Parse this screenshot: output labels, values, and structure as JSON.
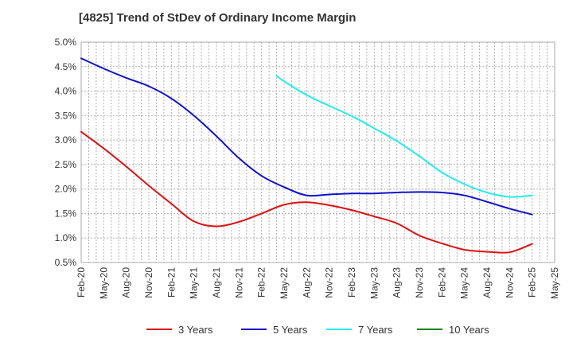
{
  "chart_data": {
    "type": "line",
    "title": "[4825]  Trend of StDev of Ordinary Income Margin",
    "xlabel": "",
    "ylabel": "",
    "x_ticks": [
      "Feb-20",
      "May-20",
      "Aug-20",
      "Nov-20",
      "Feb-21",
      "May-21",
      "Aug-21",
      "Nov-21",
      "Feb-22",
      "May-22",
      "Aug-22",
      "Nov-22",
      "Feb-23",
      "May-23",
      "Aug-23",
      "Nov-23",
      "Feb-24",
      "May-24",
      "Aug-24",
      "Nov-24",
      "Feb-25",
      "May-25"
    ],
    "y_ticks": [
      "0.5%",
      "1.0%",
      "1.5%",
      "2.0%",
      "2.5%",
      "3.0%",
      "3.5%",
      "4.0%",
      "4.5%",
      "5.0%"
    ],
    "ylim": [
      0.5,
      5.0
    ],
    "grid": true,
    "legend_position": "bottom",
    "series": [
      {
        "name": "3 Years",
        "color": "#dd1111",
        "points": [
          [
            "Feb-20",
            3.17
          ],
          [
            "May-20",
            2.83
          ],
          [
            "Aug-20",
            2.46
          ],
          [
            "Nov-20",
            2.07
          ],
          [
            "Feb-21",
            1.7
          ],
          [
            "May-21",
            1.34
          ],
          [
            "Aug-21",
            1.24
          ],
          [
            "Nov-21",
            1.33
          ],
          [
            "Feb-22",
            1.5
          ],
          [
            "May-22",
            1.68
          ],
          [
            "Aug-22",
            1.73
          ],
          [
            "Nov-22",
            1.67
          ],
          [
            "Feb-23",
            1.57
          ],
          [
            "May-23",
            1.44
          ],
          [
            "Aug-23",
            1.3
          ],
          [
            "Nov-23",
            1.05
          ],
          [
            "Feb-24",
            0.89
          ],
          [
            "May-24",
            0.76
          ],
          [
            "Aug-24",
            0.72
          ],
          [
            "Nov-24",
            0.71
          ],
          [
            "Feb-25",
            0.88
          ]
        ]
      },
      {
        "name": "5 Years",
        "color": "#1111cc",
        "points": [
          [
            "Feb-20",
            4.67
          ],
          [
            "May-20",
            4.46
          ],
          [
            "Aug-20",
            4.27
          ],
          [
            "Nov-20",
            4.1
          ],
          [
            "Feb-21",
            3.85
          ],
          [
            "May-21",
            3.5
          ],
          [
            "Aug-21",
            3.08
          ],
          [
            "Nov-21",
            2.63
          ],
          [
            "Feb-22",
            2.27
          ],
          [
            "May-22",
            2.04
          ],
          [
            "Aug-22",
            1.87
          ],
          [
            "Nov-22",
            1.89
          ],
          [
            "Feb-23",
            1.91
          ],
          [
            "May-23",
            1.91
          ],
          [
            "Aug-23",
            1.93
          ],
          [
            "Nov-23",
            1.94
          ],
          [
            "Feb-24",
            1.93
          ],
          [
            "May-24",
            1.87
          ],
          [
            "Aug-24",
            1.74
          ],
          [
            "Nov-24",
            1.6
          ],
          [
            "Feb-25",
            1.48
          ]
        ]
      },
      {
        "name": "7 Years",
        "color": "#22eeee",
        "points": [
          [
            "Apr-22",
            4.31
          ],
          [
            "May-22",
            4.2
          ],
          [
            "Aug-22",
            3.92
          ],
          [
            "Nov-22",
            3.7
          ],
          [
            "Feb-23",
            3.49
          ],
          [
            "May-23",
            3.24
          ],
          [
            "Aug-23",
            2.98
          ],
          [
            "Nov-23",
            2.67
          ],
          [
            "Feb-24",
            2.34
          ],
          [
            "May-24",
            2.1
          ],
          [
            "Aug-24",
            1.93
          ],
          [
            "Nov-24",
            1.84
          ],
          [
            "Feb-25",
            1.87
          ]
        ]
      },
      {
        "name": "10 Years",
        "color": "#118811",
        "points": []
      }
    ]
  }
}
